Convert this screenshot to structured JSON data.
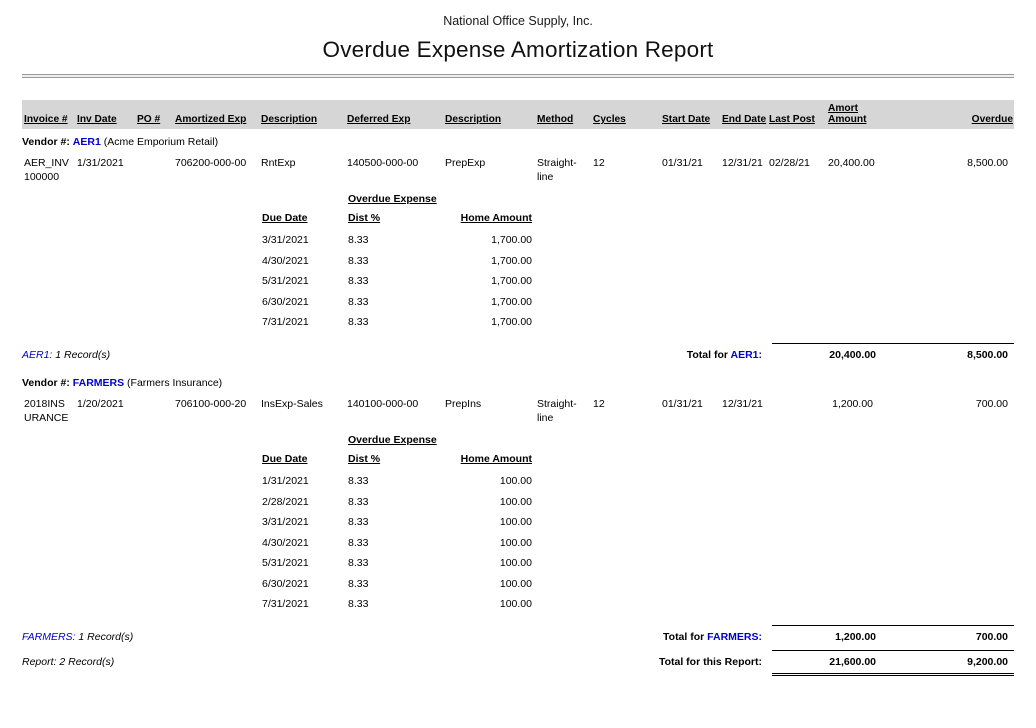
{
  "colors": {
    "accent_blue": "#0000cc",
    "header_bar": "#d6d6d6",
    "divider_gray": "#9a9a9a"
  },
  "header": {
    "company": "National Office Supply, Inc.",
    "title": "Overdue Expense Amortization Report"
  },
  "columns": {
    "invoice": "Invoice #",
    "inv_date": "Inv Date",
    "po": "PO #",
    "amortized_exp": "Amortized Exp",
    "description1": "Description",
    "deferred_exp": "Deferred Exp",
    "description2": "Description",
    "method": "Method",
    "cycles": "Cycles",
    "start_date": "Start Date",
    "end_date": "End Date",
    "last_post": "Last Post",
    "amort_amount": "Amort Amount",
    "overdue": "Overdue"
  },
  "subtable": {
    "title": "Overdue Expense",
    "columns": {
      "due_date": "Due Date",
      "dist": "Dist %",
      "home_amount": "Home Amount"
    }
  },
  "vendors": [
    {
      "label_prefix": "Vendor #:",
      "code": "AER1",
      "name": "(Acme Emporium Retail)",
      "row": {
        "invoice": "AER_INV100000",
        "inv_date": "1/31/2021",
        "po": "",
        "amortized_exp": "706200-000-00",
        "description1": "RntExp",
        "deferred_exp": "140500-000-00",
        "description2": "PrepExp",
        "method": "Straight-line",
        "cycles": "12",
        "start_date": "01/31/21",
        "end_date": "12/31/21",
        "last_post": "02/28/21",
        "amort_amount": "20,400.00",
        "overdue": "8,500.00"
      },
      "overdue_rows": [
        {
          "due_date": "3/31/2021",
          "dist": "8.33",
          "home_amount": "1,700.00"
        },
        {
          "due_date": "4/30/2021",
          "dist": "8.33",
          "home_amount": "1,700.00"
        },
        {
          "due_date": "5/31/2021",
          "dist": "8.33",
          "home_amount": "1,700.00"
        },
        {
          "due_date": "6/30/2021",
          "dist": "8.33",
          "home_amount": "1,700.00"
        },
        {
          "due_date": "7/31/2021",
          "dist": "8.33",
          "home_amount": "1,700.00"
        }
      ],
      "summary": {
        "code_label": "AER1:",
        "records": "1 Record(s)",
        "total_prefix": "Total for",
        "total_code": "AER1:",
        "total_amort": "20,400.00",
        "total_overdue": "8,500.00"
      }
    },
    {
      "label_prefix": "Vendor #:",
      "code": "FARMERS",
      "name": "(Farmers Insurance)",
      "row": {
        "invoice": "2018INSURANCE",
        "inv_date": "1/20/2021",
        "po": "",
        "amortized_exp": "706100-000-20",
        "description1": "InsExp-Sales",
        "deferred_exp": "140100-000-00",
        "description2": "PrepIns",
        "method": "Straight-line",
        "cycles": "12",
        "start_date": "01/31/21",
        "end_date": "12/31/21",
        "last_post": "",
        "amort_amount": "1,200.00",
        "overdue": "700.00"
      },
      "overdue_rows": [
        {
          "due_date": "1/31/2021",
          "dist": "8.33",
          "home_amount": "100.00"
        },
        {
          "due_date": "2/28/2021",
          "dist": "8.33",
          "home_amount": "100.00"
        },
        {
          "due_date": "3/31/2021",
          "dist": "8.33",
          "home_amount": "100.00"
        },
        {
          "due_date": "4/30/2021",
          "dist": "8.33",
          "home_amount": "100.00"
        },
        {
          "due_date": "5/31/2021",
          "dist": "8.33",
          "home_amount": "100.00"
        },
        {
          "due_date": "6/30/2021",
          "dist": "8.33",
          "home_amount": "100.00"
        },
        {
          "due_date": "7/31/2021",
          "dist": "8.33",
          "home_amount": "100.00"
        }
      ],
      "summary": {
        "code_label": "FARMERS:",
        "records": "1 Record(s)",
        "total_prefix": "Total for",
        "total_code": "FARMERS:",
        "total_amort": "1,200.00",
        "total_overdue": "700.00"
      }
    }
  ],
  "report_summary": {
    "records_prefix": "Report:",
    "records": "2 Record(s)",
    "total_label": "Total for this Report:",
    "total_amort": "21,600.00",
    "total_overdue": "9,200.00"
  }
}
